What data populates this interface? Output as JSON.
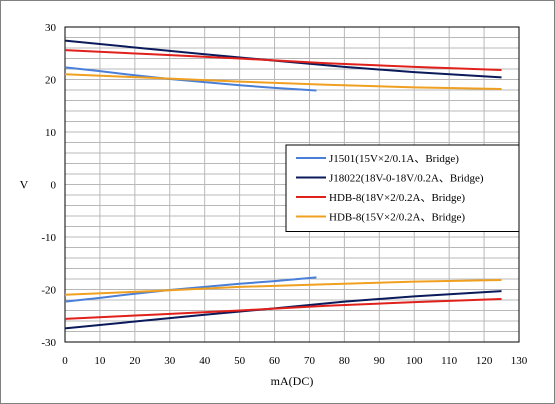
{
  "chart_data": {
    "type": "line",
    "xlabel": "mA(DC)",
    "ylabel": "V",
    "xlim": [
      0,
      130
    ],
    "ylim": [
      -30,
      30
    ],
    "x_ticks": [
      0,
      10,
      20,
      30,
      40,
      50,
      60,
      70,
      80,
      90,
      100,
      110,
      120,
      130
    ],
    "y_ticks": [
      30,
      20,
      10,
      0,
      -10,
      -20,
      -30
    ],
    "grid": true,
    "legend_position": "right, middle",
    "series": [
      {
        "name": "J1501(15V×2/0.1A、Bridge)",
        "color": "#4a7fd8",
        "x": [
          0,
          10,
          20,
          30,
          40,
          50,
          60,
          72
        ],
        "y": [
          22.3,
          21.6,
          20.8,
          20.1,
          19.5,
          18.9,
          18.4,
          17.9
        ],
        "y_neg": [
          -22.3,
          -21.6,
          -20.8,
          -20.1,
          -19.5,
          -18.9,
          -18.4,
          -17.7
        ]
      },
      {
        "name": "J18022(18V-0-18V/0.2A、Bridge)",
        "color": "#0a1a5a",
        "x": [
          0,
          20,
          40,
          60,
          80,
          100,
          125
        ],
        "y": [
          27.4,
          26.1,
          24.8,
          23.6,
          22.4,
          21.4,
          20.4
        ],
        "y_neg": [
          -27.4,
          -26.1,
          -24.8,
          -23.6,
          -22.3,
          -21.3,
          -20.3
        ]
      },
      {
        "name": "HDB-8(18V×2/0.2A、Bridge)",
        "color": "#e0201a",
        "x": [
          0,
          25,
          50,
          75,
          100,
          125
        ],
        "y": [
          25.6,
          24.8,
          24.0,
          23.1,
          22.4,
          21.8
        ],
        "y_neg": [
          -25.6,
          -24.8,
          -24.0,
          -23.1,
          -22.4,
          -21.8
        ]
      },
      {
        "name": "HDB-8(15V×2/0.2A、Bridge)",
        "color": "#f0a020",
        "x": [
          0,
          25,
          50,
          75,
          100,
          125
        ],
        "y": [
          21.0,
          20.3,
          19.6,
          19.0,
          18.5,
          18.2
        ],
        "y_neg": [
          -21.0,
          -20.3,
          -19.5,
          -19.0,
          -18.5,
          -18.2
        ]
      }
    ]
  }
}
